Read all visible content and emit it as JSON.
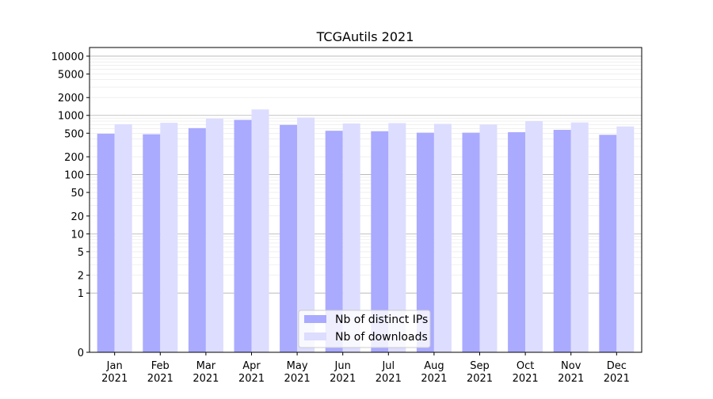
{
  "chart_data": {
    "type": "bar",
    "title": "TCGAutils 2021",
    "xlabel": "",
    "ylabel": "",
    "yscale": "symlog",
    "ylim": [
      0,
      14000
    ],
    "categories": [
      "Jan\n2021",
      "Feb\n2021",
      "Mar\n2021",
      "Apr\n2021",
      "May\n2021",
      "Jun\n2021",
      "Jul\n2021",
      "Aug\n2021",
      "Sep\n2021",
      "Oct\n2021",
      "Nov\n2021",
      "Dec\n2021"
    ],
    "series": [
      {
        "name": "Nb of distinct IPs",
        "color": "#aaaaff",
        "values": [
          490,
          480,
          610,
          840,
          690,
          550,
          540,
          510,
          510,
          520,
          570,
          470
        ]
      },
      {
        "name": "Nb of downloads",
        "color": "#ddddff",
        "values": [
          710,
          750,
          880,
          1260,
          920,
          730,
          740,
          720,
          700,
          800,
          760,
          650
        ]
      }
    ],
    "yticks": [
      {
        "value": 0,
        "label": "0"
      },
      {
        "value": 1,
        "label": "1"
      },
      {
        "value": 2,
        "label": "2"
      },
      {
        "value": 5,
        "label": "5"
      },
      {
        "value": 10,
        "label": "10"
      },
      {
        "value": 20,
        "label": "20"
      },
      {
        "value": 50,
        "label": "50"
      },
      {
        "value": 100,
        "label": "100"
      },
      {
        "value": 200,
        "label": "200"
      },
      {
        "value": 500,
        "label": "500"
      },
      {
        "value": 1000,
        "label": "1000"
      },
      {
        "value": 2000,
        "label": "2000"
      },
      {
        "value": 5000,
        "label": "5000"
      },
      {
        "value": 10000,
        "label": "10000"
      }
    ],
    "grid": true,
    "legend_position": "lower center"
  }
}
